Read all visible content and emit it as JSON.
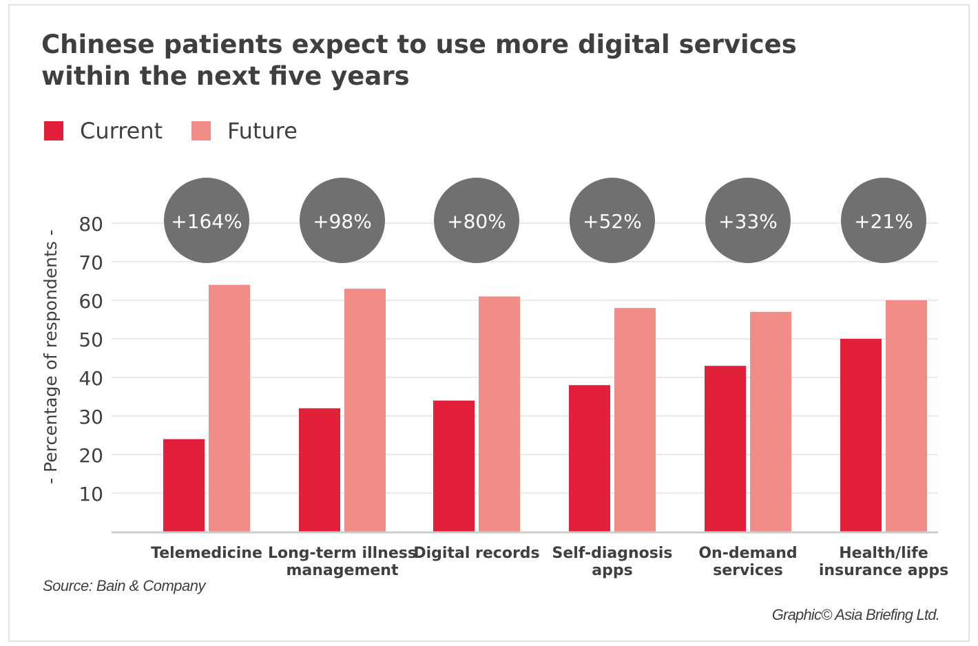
{
  "chart_data": {
    "type": "bar",
    "title": "Chinese patients expect to use more digital services within the next five years",
    "ylabel": "- Percentage of respondents -",
    "ylim": [
      0,
      80
    ],
    "yticks": [
      10,
      20,
      30,
      40,
      50,
      60,
      70,
      80
    ],
    "grid": true,
    "legend_position": "top-left",
    "categories": [
      [
        "Telemedicine"
      ],
      [
        "Long-term illness",
        "management"
      ],
      [
        "Digital records"
      ],
      [
        "Self-diagnosis",
        "apps"
      ],
      [
        "On-demand",
        "services"
      ],
      [
        "Health/life",
        "insurance apps"
      ]
    ],
    "series": [
      {
        "name": "Current",
        "color": "#e2203a",
        "values": [
          24,
          32,
          34,
          38,
          43,
          50
        ]
      },
      {
        "name": "Future",
        "color": "#f28c86",
        "values": [
          64,
          63,
          61,
          58,
          57,
          60
        ]
      }
    ],
    "annotations": [
      "+164%",
      "+98%",
      "+80%",
      "+52%",
      "+33%",
      "+21%"
    ],
    "annotation_color": "#707070"
  },
  "footer": {
    "source": "Source: Bain & Company",
    "credit": "Graphic© Asia Briefing Ltd."
  }
}
